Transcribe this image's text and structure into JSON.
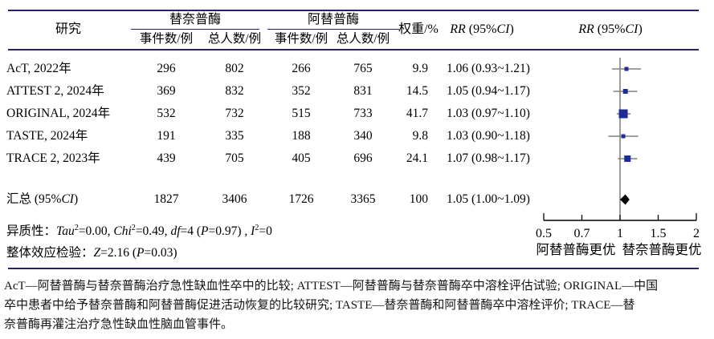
{
  "table": {
    "col_study": "研究",
    "group_tenecteplase": "替奈普酶",
    "group_alteplase": "阿替普酶",
    "sub_events": "事件数/例",
    "sub_total": "总人数/例",
    "col_weight": "权重/%",
    "col_rr_rich": [
      {
        "t": "RR",
        "i": 1
      },
      {
        "t": " (95%"
      },
      {
        "t": "CI",
        "i": 1
      },
      {
        "t": ")"
      }
    ],
    "rows": [
      {
        "study": "AcT, 2022年",
        "e1": "296",
        "n1": "802",
        "e2": "266",
        "n2": "765",
        "w": "9.9",
        "rr": "1.06 (0.93~1.21)"
      },
      {
        "study": "ATTEST 2, 2024年",
        "e1": "369",
        "n1": "832",
        "e2": "352",
        "n2": "831",
        "w": "14.5",
        "rr": "1.05 (0.94~1.17)"
      },
      {
        "study": "ORIGINAL, 2024年",
        "e1": "532",
        "n1": "732",
        "e2": "515",
        "n2": "733",
        "w": "41.7",
        "rr": "1.03 (0.97~1.10)"
      },
      {
        "study": "TASTE, 2024年",
        "e1": "191",
        "n1": "335",
        "e2": "188",
        "n2": "340",
        "w": "9.8",
        "rr": "1.03 (0.90~1.18)"
      },
      {
        "study": "TRACE 2, 2023年",
        "e1": "439",
        "n1": "705",
        "e2": "405",
        "n2": "696",
        "w": "24.1",
        "rr": "1.07 (0.98~1.17)"
      }
    ],
    "pooled": {
      "label_rich": [
        {
          "t": "汇总 (95%"
        },
        {
          "t": "CI",
          "i": 1
        },
        {
          "t": ")"
        }
      ],
      "e1": "1827",
      "n1": "3406",
      "e2": "1726",
      "n2": "3365",
      "w": "100",
      "rr": "1.05 (1.00~1.09)"
    }
  },
  "stats": {
    "heterogeneity_rich": [
      {
        "t": "异质性："
      },
      {
        "t": "Tau",
        "i": 1
      },
      {
        "t": "2",
        "s": 1
      },
      {
        "t": "=0.00, "
      },
      {
        "t": "Chi",
        "i": 1
      },
      {
        "t": "2",
        "s": 1
      },
      {
        "t": "=0.49, "
      },
      {
        "t": "df",
        "i": 1
      },
      {
        "t": "=4 ("
      },
      {
        "t": "P",
        "i": 1
      },
      {
        "t": "=0.97) , "
      },
      {
        "t": "I",
        "i": 1
      },
      {
        "t": "2",
        "s": 1
      },
      {
        "t": "=0"
      }
    ],
    "overall_rich": [
      {
        "t": "整体效应检验："
      },
      {
        "t": "Z",
        "i": 1
      },
      {
        "t": "=2.16 ("
      },
      {
        "t": "P",
        "i": 1
      },
      {
        "t": "=0.03)"
      }
    ]
  },
  "footnote_lines": [
    "AcT—阿替普酶与替奈普酶治疗急性缺血性卒中的比较; ATTEST—阿替普酶与替奈普酶卒中溶栓评估试验; ORIGINAL—中国",
    "卒中患者中给予替奈普酶和阿替普酶促进活动恢复的比较研究; TASTE—替奈普酶和阿替普酶卒中溶栓评价; TRACE—替",
    "奈普酶再灌注治疗急性缺血性脑血管事件。"
  ],
  "chart_data": {
    "type": "forest",
    "effect_measure": "RR",
    "x_axis": {
      "scale": "log",
      "min": 0.5,
      "max": 2,
      "ticks": [
        0.5,
        0.7,
        1,
        1.5,
        2
      ],
      "tick_labels": [
        "0.5",
        "0.7",
        "1",
        "1.5",
        "2"
      ],
      "ref_line": 1
    },
    "studies": [
      {
        "name": "AcT, 2022年",
        "rr": 1.06,
        "ci_low": 0.93,
        "ci_high": 1.21,
        "weight": 9.9
      },
      {
        "name": "ATTEST 2, 2024年",
        "rr": 1.05,
        "ci_low": 0.94,
        "ci_high": 1.17,
        "weight": 14.5
      },
      {
        "name": "ORIGINAL, 2024年",
        "rr": 1.03,
        "ci_low": 0.97,
        "ci_high": 1.1,
        "weight": 41.7
      },
      {
        "name": "TASTE, 2024年",
        "rr": 1.03,
        "ci_low": 0.9,
        "ci_high": 1.18,
        "weight": 9.8
      },
      {
        "name": "TRACE 2, 2023年",
        "rr": 1.07,
        "ci_low": 0.98,
        "ci_high": 1.17,
        "weight": 24.1
      }
    ],
    "pooled": {
      "name": "汇总",
      "rr": 1.05,
      "ci_low": 1.0,
      "ci_high": 1.09,
      "weight": 100
    },
    "direction_labels": {
      "left": "阿替普酶更优",
      "right": "替奈普酶更优"
    },
    "colors": {
      "square": "#1e2b9a",
      "ci_line": "#808080",
      "diamond": "#000000",
      "rule": "#272361",
      "ref_line": "#666666",
      "axis": "#000000"
    }
  }
}
